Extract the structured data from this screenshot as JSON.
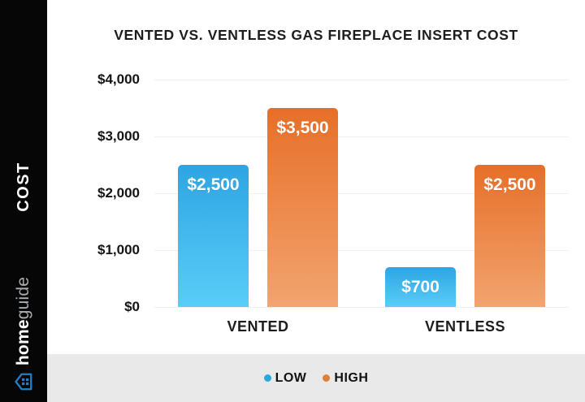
{
  "sidebar": {
    "vertical_label": "COST",
    "brand": {
      "name_bold": "home",
      "name_light": "guide",
      "logo_color": "#2181c3"
    }
  },
  "chart_data": {
    "type": "bar",
    "title": "VENTED VS. VENTLESS GAS FIREPLACE INSERT COST",
    "categories": [
      "VENTED",
      "VENTLESS"
    ],
    "series": [
      {
        "name": "LOW",
        "values": [
          2500,
          700
        ],
        "labels": [
          "$2,500",
          "$700"
        ],
        "color": "#29a8e0",
        "gradient": [
          "#2ea5e3",
          "#59cdf8"
        ]
      },
      {
        "name": "HIGH",
        "values": [
          3500,
          2500
        ],
        "labels": [
          "$3,500",
          "$2,500"
        ],
        "color": "#e07f35",
        "gradient": [
          "#e66f28",
          "#f2a470"
        ]
      }
    ],
    "y_ticks": [
      "$4,000",
      "$3,000",
      "$2,000",
      "$1,000",
      "$0"
    ],
    "ylim": [
      0,
      4000
    ],
    "grid": true,
    "legend_position": "bottom"
  },
  "colors": {
    "sidebar_bg": "#060606",
    "legend_strip_bg": "#e9e9e9",
    "gridline": "#f0f0f0",
    "text": "#1d1d1f"
  }
}
